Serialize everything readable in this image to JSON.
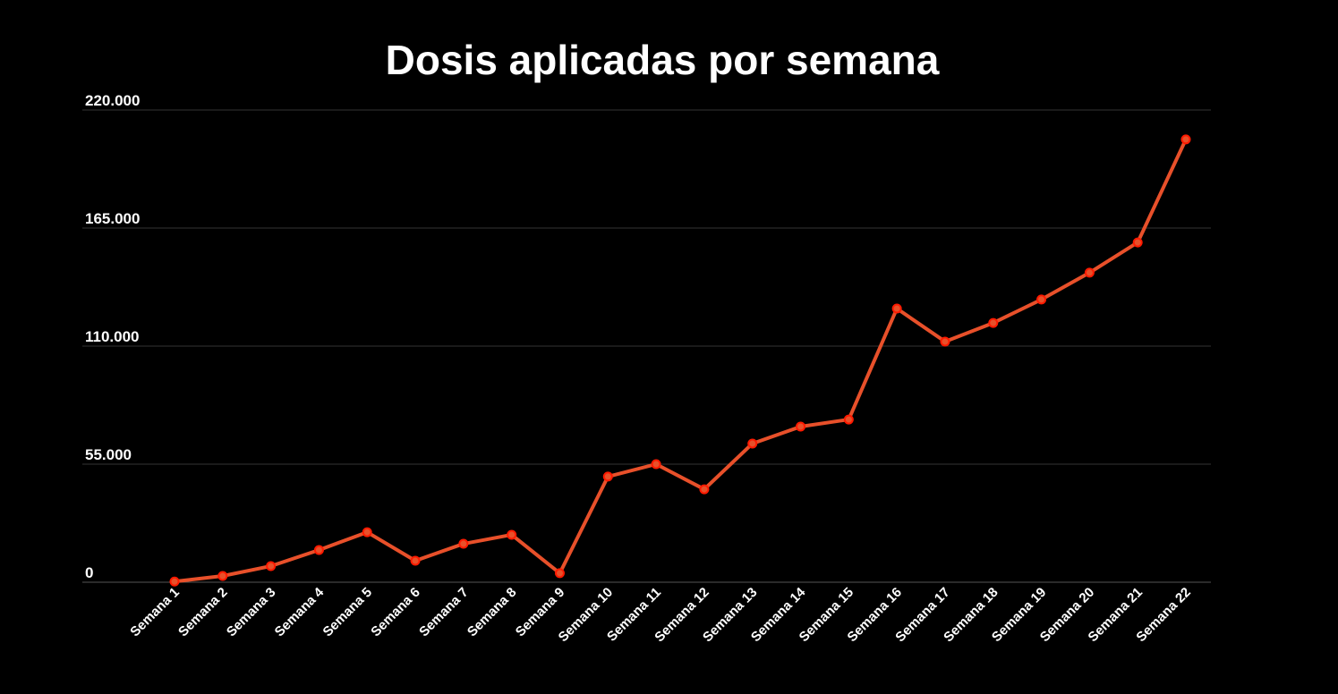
{
  "chart_data": {
    "type": "line",
    "title": "Dosis aplicadas por semana",
    "xlabel": "",
    "ylabel": "",
    "ylim": [
      0,
      220000
    ],
    "yticks": [
      0,
      55000,
      110000,
      165000,
      220000
    ],
    "ytick_labels": [
      "0",
      "55.000",
      "110.000",
      "165.000",
      "220.000"
    ],
    "grid": true,
    "legend": "none",
    "line_color": "#e8502a",
    "marker_stroke": "#ff1a00",
    "background": "#000000",
    "categories": [
      "Semana 1",
      "Semana 2",
      "Semana 3",
      "Semana 4",
      "Semana 5",
      "Semana 6",
      "Semana 7",
      "Semana 8",
      "Semana 9",
      "Semana 10",
      "Semana 11",
      "Semana 12",
      "Semana 13",
      "Semana 14",
      "Semana 15",
      "Semana 16",
      "Semana 17",
      "Semana 18",
      "Semana 19",
      "Semana 20",
      "Semana 21",
      "Semana 22"
    ],
    "values": [
      300,
      2900,
      7500,
      15000,
      23300,
      10000,
      17900,
      22100,
      4200,
      49200,
      55000,
      43300,
      64600,
      72500,
      75800,
      127500,
      112100,
      120800,
      131700,
      144200,
      158300,
      206300
    ]
  }
}
